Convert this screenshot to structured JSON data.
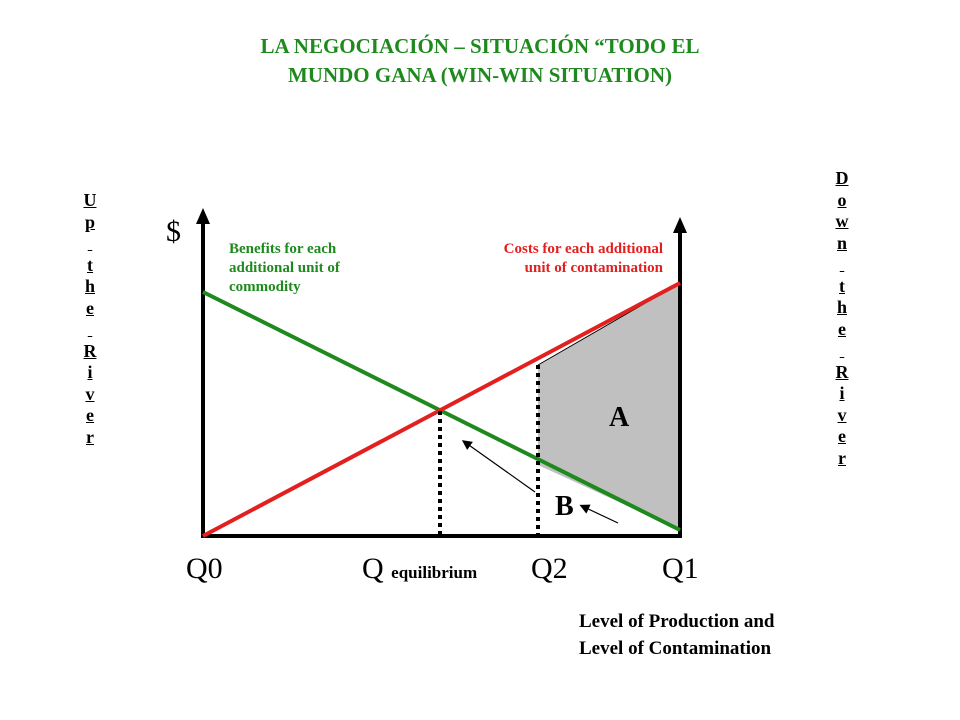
{
  "title": {
    "line1": "LA NEGOCIACIÓN – SITUACIÓN “TODO EL",
    "line2": "MUNDO GANA (WIN-WIN SITUATION)"
  },
  "left_vertical": [
    "U",
    "p",
    "",
    "t",
    "h",
    "e",
    "",
    "R",
    "i",
    "v",
    "e",
    "r"
  ],
  "right_vertical": [
    "D",
    "o",
    "w",
    "n",
    "",
    "t",
    "h",
    "e",
    "",
    "R",
    "i",
    "v",
    "e",
    "r"
  ],
  "y_axis_label": "$",
  "benefit_label": {
    "line1": "Benefits for each",
    "line2": "additional unit of",
    "line3": "commodity"
  },
  "cost_label": {
    "line1": "Costs for each additional",
    "line2": "unit of contamination"
  },
  "x_ticks": {
    "q0": "Q0",
    "q_eq": "Q",
    "q_eq_sub": "equilibrium",
    "q2": "Q2",
    "q1": "Q1"
  },
  "areas": {
    "a": "A",
    "b": "B"
  },
  "x_axis_label": {
    "line1": "Level of Production and",
    "line2": "Level of Contamination"
  },
  "colors": {
    "title": "#1e8a1e",
    "benefit_line": "#1e8a1e",
    "cost_line": "#e32020",
    "shaded_area": "#c0c0c0"
  }
}
